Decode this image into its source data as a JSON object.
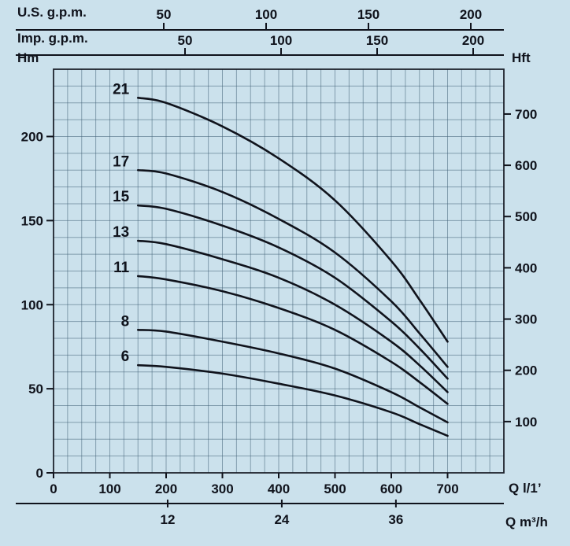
{
  "colors": {
    "background": "#cbe1ec",
    "grid": "#46657a",
    "axis": "#10131c",
    "curve": "#10131c",
    "text": "#10131c"
  },
  "axes": {
    "us_gpm": {
      "label": "U.S. g.p.m.",
      "ticks": [
        50,
        100,
        150,
        200
      ]
    },
    "imp_gpm": {
      "label": "Imp. g.p.m.",
      "ticks": [
        50,
        100,
        150,
        200
      ]
    },
    "left_hm": {
      "label": "Hm",
      "ticks": [
        0,
        50,
        100,
        150,
        200
      ]
    },
    "right_hft": {
      "label": "Hft",
      "ticks": [
        100,
        200,
        300,
        400,
        500,
        600,
        700
      ]
    },
    "bottom_l1": {
      "label": "Q l/1’",
      "ticks": [
        0,
        100,
        200,
        300,
        400,
        500,
        600,
        700
      ]
    },
    "bottom_m3h": {
      "label": "Q m³/h",
      "ticks": [
        12,
        24,
        36
      ]
    }
  },
  "chart_data": {
    "type": "line",
    "title": "",
    "xlabel": "Q l/1’",
    "ylabel": "Hm",
    "xlim": [
      0,
      800
    ],
    "ylim": [
      0,
      240
    ],
    "grid": true,
    "x": [
      150,
      200,
      300,
      400,
      500,
      600,
      650,
      700
    ],
    "series": [
      {
        "name": "21",
        "values": [
          223,
          220,
          206,
          187,
          162,
          126,
          103,
          78
        ]
      },
      {
        "name": "17",
        "values": [
          180,
          178,
          167,
          151,
          131,
          102,
          83,
          63
        ]
      },
      {
        "name": "15",
        "values": [
          159,
          157,
          147,
          134,
          116,
          90,
          74,
          56
        ]
      },
      {
        "name": "13",
        "values": [
          138,
          136,
          127,
          116,
          100,
          78,
          64,
          48
        ]
      },
      {
        "name": "11",
        "values": [
          117,
          115,
          108,
          98,
          85,
          66,
          54,
          41
        ]
      },
      {
        "name": "8",
        "values": [
          85,
          84,
          78,
          71,
          62,
          48,
          39,
          30
        ]
      },
      {
        "name": "6",
        "values": [
          64,
          63,
          59,
          53,
          46,
          36,
          29,
          22
        ]
      }
    ]
  }
}
